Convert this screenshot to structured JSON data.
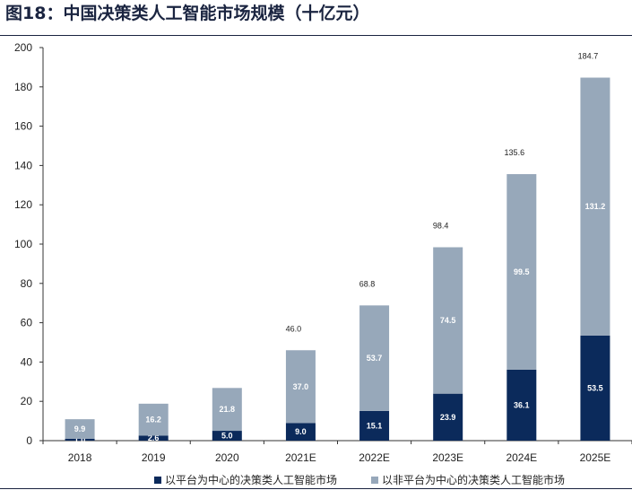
{
  "header": {
    "title": "图18：中国决策类人工智能市场规模（十亿元）"
  },
  "colors": {
    "platform": "#0b2a5b",
    "non_platform": "#97a8ba"
  },
  "chart_data": {
    "type": "bar",
    "stacked": true,
    "categories": [
      "2018",
      "2019",
      "2020",
      "2021E",
      "2022E",
      "2023E",
      "2024E",
      "2025E"
    ],
    "series": [
      {
        "name": "以平台为中心的决策类人工智能市场",
        "values": [
          1.0,
          2.6,
          5.0,
          9.0,
          15.1,
          23.9,
          36.1,
          53.5
        ]
      },
      {
        "name": "以非平台为中心的决策类人工智能市场",
        "values": [
          9.9,
          16.2,
          21.8,
          37.0,
          53.7,
          74.5,
          99.5,
          131.2
        ]
      }
    ],
    "totals": [
      null,
      null,
      null,
      46.0,
      68.8,
      98.4,
      135.6,
      184.7
    ],
    "ylim": [
      0,
      200
    ],
    "yticks": [
      0,
      20,
      40,
      60,
      80,
      100,
      120,
      140,
      160,
      180,
      200
    ],
    "xlabel": "",
    "ylabel": "",
    "grid": false,
    "legend_position": "bottom"
  }
}
